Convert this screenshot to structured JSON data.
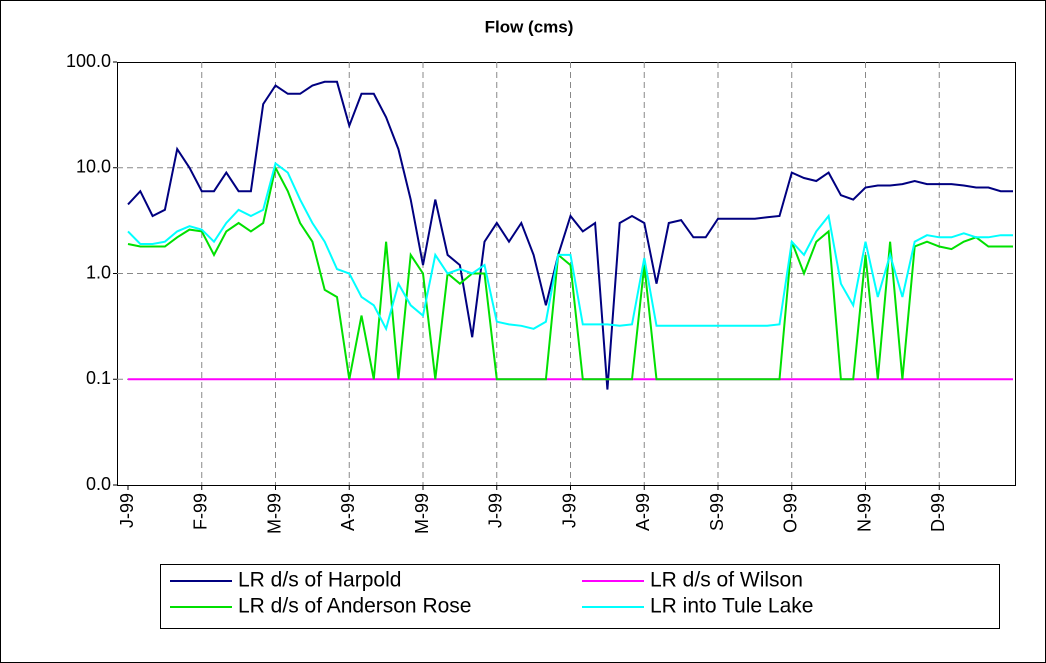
{
  "chart_data": {
    "type": "line",
    "title": "Flow (cms)",
    "log_y": true,
    "grid": true,
    "legend": "bottom",
    "categories": [
      "J-99",
      null,
      null,
      null,
      null,
      null,
      "F-99",
      null,
      null,
      null,
      null,
      null,
      "M-99",
      null,
      null,
      null,
      null,
      null,
      "A-99",
      null,
      null,
      null,
      null,
      null,
      "M-99",
      null,
      null,
      null,
      null,
      null,
      "J-99",
      null,
      null,
      null,
      null,
      null,
      "J-99",
      null,
      null,
      null,
      null,
      null,
      "A-99",
      null,
      null,
      null,
      null,
      null,
      "S-99",
      null,
      null,
      null,
      null,
      null,
      "O-99",
      null,
      null,
      null,
      null,
      null,
      "N-99",
      null,
      null,
      null,
      null,
      null,
      "D-99",
      null,
      null,
      null,
      null,
      null,
      null
    ],
    "ylim": [
      0.01,
      100
    ],
    "yticks": [
      {
        "value": 0.01,
        "label": "0.0"
      },
      {
        "value": 0.1,
        "label": "0.1"
      },
      {
        "value": 1,
        "label": "1.0"
      },
      {
        "value": 10,
        "label": "10.0"
      },
      {
        "value": 100,
        "label": "100.0"
      }
    ],
    "series": [
      {
        "name": "LR d/s of Harpold",
        "color": "#000080",
        "values": [
          4.5,
          6,
          3.5,
          4,
          15,
          10,
          6,
          6,
          9,
          6,
          6,
          40,
          60,
          50,
          50,
          60,
          65,
          65,
          25,
          50,
          50,
          30,
          15,
          5,
          1.2,
          5,
          1.5,
          1.2,
          0.25,
          2,
          3,
          2,
          3,
          1.5,
          0.5,
          1.5,
          3.5,
          2.5,
          3,
          0.08,
          3,
          3.5,
          3,
          0.8,
          3,
          3.2,
          2.2,
          2.2,
          3.3,
          3.3,
          3.3,
          3.3,
          3.4,
          3.5,
          9,
          8,
          7.5,
          9,
          5.5,
          5,
          6.5,
          6.8,
          6.8,
          7,
          7.5,
          7,
          7,
          7,
          6.8,
          6.5,
          6.5,
          6,
          6
        ]
      },
      {
        "name": "LR d/s of Wilson",
        "color": "#ff00ff",
        "values": [
          0.1,
          0.1,
          0.1,
          0.1,
          0.1,
          0.1,
          0.1,
          0.1,
          0.1,
          0.1,
          0.1,
          0.1,
          0.1,
          0.1,
          0.1,
          0.1,
          0.1,
          0.1,
          0.1,
          0.1,
          0.1,
          0.1,
          0.1,
          0.1,
          0.1,
          0.1,
          0.1,
          0.1,
          0.1,
          0.1,
          0.1,
          0.1,
          0.1,
          0.1,
          0.1,
          0.1,
          0.1,
          0.1,
          0.1,
          0.1,
          0.1,
          0.1,
          0.1,
          0.1,
          0.1,
          0.1,
          0.1,
          0.1,
          0.1,
          0.1,
          0.1,
          0.1,
          0.1,
          0.1,
          0.1,
          0.1,
          0.1,
          0.1,
          0.1,
          0.1,
          0.1,
          0.1,
          0.1,
          0.1,
          0.1,
          0.1,
          0.1,
          0.1,
          0.1,
          0.1,
          0.1,
          0.1,
          0.1
        ]
      },
      {
        "name": "LR d/s of Anderson Rose",
        "color": "#00e000",
        "values": [
          1.9,
          1.8,
          1.8,
          1.8,
          2.2,
          2.6,
          2.5,
          1.5,
          2.5,
          3,
          2.5,
          3,
          10,
          6,
          3,
          2,
          0.7,
          0.6,
          0.1,
          0.4,
          0.1,
          2,
          0.1,
          1.5,
          1,
          0.1,
          1,
          0.8,
          1,
          1,
          0.1,
          0.1,
          0.1,
          0.1,
          0.1,
          1.5,
          1.2,
          0.1,
          0.1,
          0.1,
          0.1,
          0.1,
          1.2,
          0.1,
          0.1,
          0.1,
          0.1,
          0.1,
          0.1,
          0.1,
          0.1,
          0.1,
          0.1,
          0.1,
          2,
          1,
          2,
          2.5,
          0.1,
          0.1,
          1.5,
          0.1,
          2,
          0.1,
          1.8,
          2,
          1.8,
          1.7,
          2,
          2.2,
          1.8,
          1.8,
          1.8
        ]
      },
      {
        "name": "LR into Tule Lake",
        "color": "#00ffff",
        "values": [
          2.5,
          1.9,
          1.9,
          2,
          2.5,
          2.8,
          2.6,
          2,
          3,
          4,
          3.5,
          4,
          11,
          9,
          5,
          3,
          2,
          1.1,
          1,
          0.6,
          0.5,
          0.3,
          0.8,
          0.5,
          0.4,
          1.5,
          1,
          1.1,
          1,
          1.2,
          0.35,
          0.33,
          0.32,
          0.3,
          0.35,
          1.5,
          1.5,
          0.33,
          0.33,
          0.33,
          0.32,
          0.33,
          1.4,
          0.32,
          0.32,
          0.32,
          0.32,
          0.32,
          0.32,
          0.32,
          0.32,
          0.32,
          0.32,
          0.33,
          2,
          1.5,
          2.5,
          3.5,
          0.8,
          0.5,
          2,
          0.6,
          1.5,
          0.6,
          2,
          2.3,
          2.2,
          2.2,
          2.4,
          2.2,
          2.2,
          2.3,
          2.3
        ]
      }
    ]
  }
}
